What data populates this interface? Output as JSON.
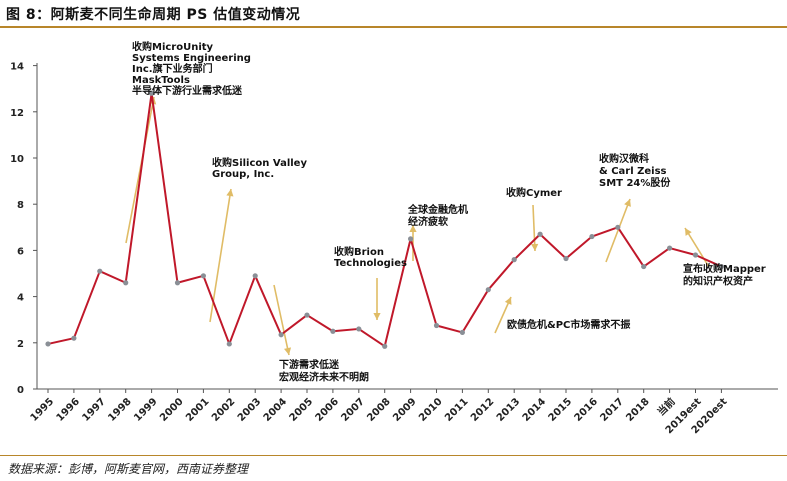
{
  "header": {
    "title": "图 8：阿斯麦不同生命周期 PS 估值变动情况"
  },
  "footer": {
    "source": "数据来源：彭博，阿斯麦官网，西南证券整理"
  },
  "chart_data": {
    "type": "line",
    "title": "",
    "xlabel": "",
    "ylabel": "",
    "ylim": [
      0,
      14
    ],
    "yticks": [
      0,
      2,
      4,
      6,
      8,
      10,
      12,
      14
    ],
    "grid": false,
    "legend": "none",
    "line_color": "#c0182a",
    "marker_color": "#8a8f96",
    "arrow_color": "#e0bc66",
    "x": [
      "1995",
      "1996",
      "1997",
      "1998",
      "1999",
      "2000",
      "2001",
      "2002",
      "2003",
      "2004",
      "2005",
      "2006",
      "2007",
      "2008",
      "2009",
      "2010",
      "2011",
      "2012",
      "2013",
      "2014",
      "2015",
      "2016",
      "2017",
      "2018",
      "当前",
      "2019est",
      "2020est"
    ],
    "series": [
      {
        "values": [
          1.95,
          2.2,
          5.1,
          4.6,
          12.8,
          4.6,
          4.9,
          1.95,
          4.9,
          2.35,
          3.2,
          2.5,
          2.6,
          1.85,
          6.5,
          2.75,
          2.45,
          4.3,
          5.6,
          6.7,
          5.65,
          6.6,
          7.0,
          5.3,
          6.1,
          5.8,
          5.3
        ]
      }
    ],
    "annotations": [
      {
        "name": "annotation-microunity",
        "lines": [
          "收购MicroUnity",
          "Systems Engineering",
          "Inc.旗下业务部门",
          "MaskTools",
          "半导体下游行业需求低迷"
        ]
      },
      {
        "name": "annotation-silicon-valley",
        "lines": [
          "收购Silicon Valley",
          "Group, Inc."
        ]
      },
      {
        "name": "annotation-downstream",
        "lines": [
          "下游需求低迷",
          "宏观经济未来不明朗"
        ]
      },
      {
        "name": "annotation-brion",
        "lines": [
          "收购Brion",
          "Technologies"
        ]
      },
      {
        "name": "annotation-financial-crisis",
        "lines": [
          "全球金融危机",
          "经济疲软"
        ]
      },
      {
        "name": "annotation-euro-debt",
        "lines": [
          "欧债危机&PC市场需求不振"
        ]
      },
      {
        "name": "annotation-cymer",
        "lines": [
          "收购Cymer"
        ]
      },
      {
        "name": "annotation-zeiss",
        "lines": [
          "收购汉微科",
          "& Carl Zeiss",
          "SMT 24%股份"
        ]
      },
      {
        "name": "annotation-mapper",
        "lines": [
          "宣布收购Mapper",
          "的知识产权资产"
        ]
      }
    ]
  }
}
